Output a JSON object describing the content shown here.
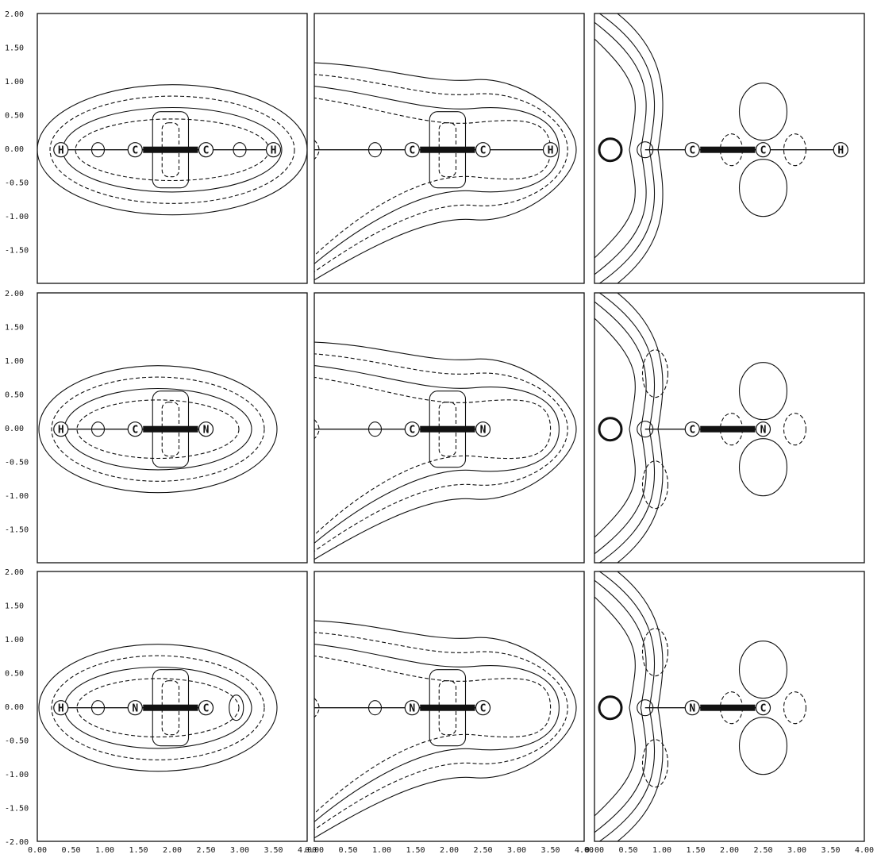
{
  "figure": {
    "y_tick_labels": [
      "2.00",
      "1.50",
      "1.00",
      "0.50",
      "0.00",
      "-0.50",
      "-1.00",
      "-1.50",
      "-2.00"
    ],
    "x_tick_labels": [
      "0.00",
      "0.50",
      "1.00",
      "1.50",
      "2.00",
      "2.50",
      "3.00",
      "3.50",
      "4.00"
    ],
    "colors": {
      "ink": "#111111",
      "background": "#ffffff"
    },
    "panels": [
      {
        "row": 0,
        "col": 0,
        "atoms": [
          {
            "label": "H",
            "x": 0.35
          },
          {
            "label": "C",
            "x": 1.45
          },
          {
            "label": "C",
            "x": 2.5
          },
          {
            "label": "H",
            "x": 3.5
          }
        ],
        "triple_bond": [
          1.45,
          2.5
        ]
      },
      {
        "row": 0,
        "col": 1,
        "atoms": [
          {
            "label": "C",
            "x": 1.45
          },
          {
            "label": "C",
            "x": 2.5
          },
          {
            "label": "H",
            "x": 3.5
          }
        ],
        "triple_bond": [
          1.45,
          2.5
        ]
      },
      {
        "row": 0,
        "col": 2,
        "atoms": [
          {
            "label": "C",
            "x": 1.45
          },
          {
            "label": "C",
            "x": 2.5
          },
          {
            "label": "H",
            "x": 3.65
          }
        ],
        "triple_bond": [
          1.45,
          2.5
        ]
      },
      {
        "row": 1,
        "col": 0,
        "atoms": [
          {
            "label": "H",
            "x": 0.35
          },
          {
            "label": "C",
            "x": 1.45
          },
          {
            "label": "N",
            "x": 2.5
          }
        ],
        "triple_bond": [
          1.45,
          2.5
        ]
      },
      {
        "row": 1,
        "col": 1,
        "atoms": [
          {
            "label": "C",
            "x": 1.45
          },
          {
            "label": "N",
            "x": 2.5
          }
        ],
        "triple_bond": [
          1.45,
          2.5
        ]
      },
      {
        "row": 1,
        "col": 2,
        "atoms": [
          {
            "label": "C",
            "x": 1.45
          },
          {
            "label": "N",
            "x": 2.5
          }
        ],
        "triple_bond": [
          1.45,
          2.5
        ]
      },
      {
        "row": 2,
        "col": 0,
        "atoms": [
          {
            "label": "H",
            "x": 0.35
          },
          {
            "label": "N",
            "x": 1.45
          },
          {
            "label": "C",
            "x": 2.5
          }
        ],
        "triple_bond": [
          1.45,
          2.5
        ]
      },
      {
        "row": 2,
        "col": 1,
        "atoms": [
          {
            "label": "N",
            "x": 1.45
          },
          {
            "label": "C",
            "x": 2.5
          }
        ],
        "triple_bond": [
          1.45,
          2.5
        ]
      },
      {
        "row": 2,
        "col": 2,
        "atoms": [
          {
            "label": "N",
            "x": 1.45
          },
          {
            "label": "C",
            "x": 2.5
          }
        ],
        "triple_bond": [
          1.45,
          2.5
        ]
      }
    ]
  }
}
